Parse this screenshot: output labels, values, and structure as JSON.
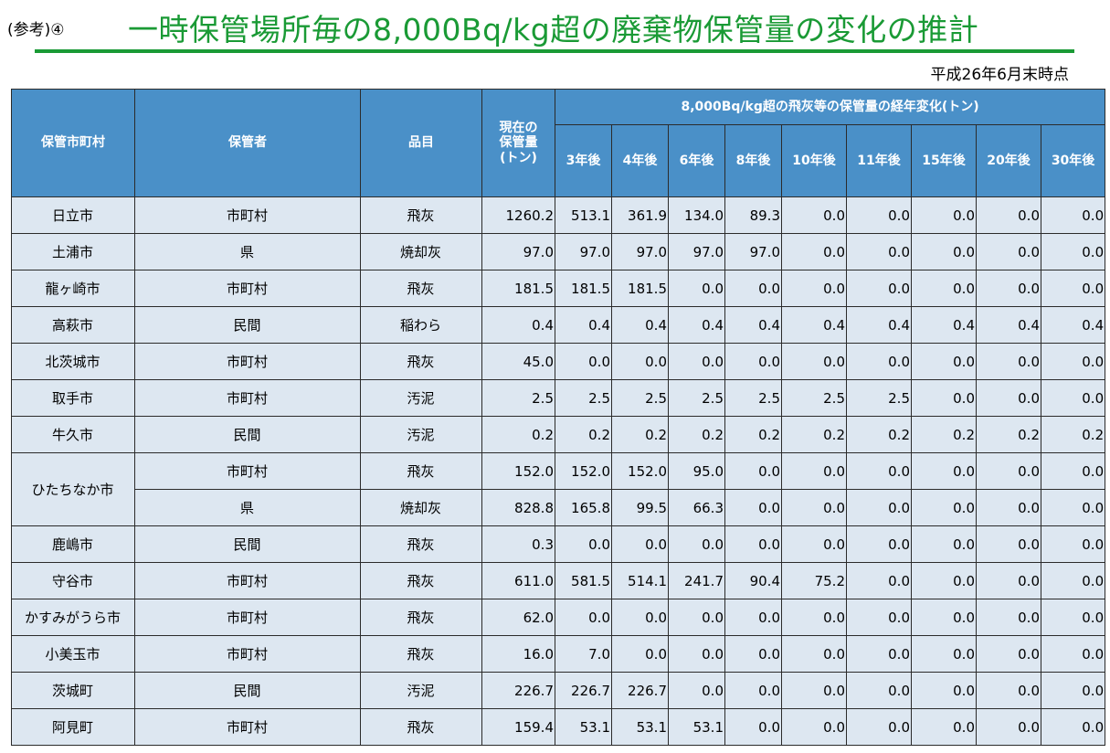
{
  "header": {
    "ref_label": "(参考)④",
    "title": "一時保管場所毎の8,000Bq/kg超の廃棄物保管量の変化の推計",
    "date_note": "平成26年6月末時点",
    "title_color": "#1a9a35"
  },
  "table": {
    "header_color": "#4a90c8",
    "cell_color": "#dde7f1",
    "columns": {
      "municipality": "保管市町村",
      "custodian": "保管者",
      "item": "品目",
      "current": "現在の\n保管量\n(トン)",
      "change_group": "8,000Bq/kg超の飛灰等の保管量の経年変化(トン)"
    },
    "years": [
      "3年後",
      "4年後",
      "6年後",
      "8年後",
      "10年後",
      "11年後",
      "15年後",
      "20年後",
      "30年後"
    ],
    "rows": [
      {
        "municipality": "日立市",
        "custodian": "市町村",
        "item": "飛灰",
        "current": "1260.2",
        "values": [
          "513.1",
          "361.9",
          "134.0",
          "89.3",
          "0.0",
          "0.0",
          "0.0",
          "0.0",
          "0.0"
        ]
      },
      {
        "municipality": "土浦市",
        "custodian": "県",
        "item": "焼却灰",
        "current": "97.0",
        "values": [
          "97.0",
          "97.0",
          "97.0",
          "97.0",
          "0.0",
          "0.0",
          "0.0",
          "0.0",
          "0.0"
        ]
      },
      {
        "municipality": "龍ヶ崎市",
        "custodian": "市町村",
        "item": "飛灰",
        "current": "181.5",
        "values": [
          "181.5",
          "181.5",
          "0.0",
          "0.0",
          "0.0",
          "0.0",
          "0.0",
          "0.0",
          "0.0"
        ]
      },
      {
        "municipality": "高萩市",
        "custodian": "民間",
        "item": "稲わら",
        "current": "0.4",
        "values": [
          "0.4",
          "0.4",
          "0.4",
          "0.4",
          "0.4",
          "0.4",
          "0.4",
          "0.4",
          "0.4"
        ]
      },
      {
        "municipality": "北茨城市",
        "custodian": "市町村",
        "item": "飛灰",
        "current": "45.0",
        "values": [
          "0.0",
          "0.0",
          "0.0",
          "0.0",
          "0.0",
          "0.0",
          "0.0",
          "0.0",
          "0.0"
        ]
      },
      {
        "municipality": "取手市",
        "custodian": "市町村",
        "item": "汚泥",
        "current": "2.5",
        "values": [
          "2.5",
          "2.5",
          "2.5",
          "2.5",
          "2.5",
          "2.5",
          "0.0",
          "0.0",
          "0.0"
        ]
      },
      {
        "municipality": "牛久市",
        "custodian": "民間",
        "item": "汚泥",
        "current": "0.2",
        "values": [
          "0.2",
          "0.2",
          "0.2",
          "0.2",
          "0.2",
          "0.2",
          "0.2",
          "0.2",
          "0.2"
        ]
      },
      {
        "municipality": "ひたちなか市",
        "custodian": "市町村",
        "item": "飛灰",
        "current": "152.0",
        "values": [
          "152.0",
          "152.0",
          "95.0",
          "0.0",
          "0.0",
          "0.0",
          "0.0",
          "0.0",
          "0.0"
        ]
      },
      {
        "municipality": "",
        "custodian": "県",
        "item": "焼却灰",
        "current": "828.8",
        "values": [
          "165.8",
          "99.5",
          "66.3",
          "0.0",
          "0.0",
          "0.0",
          "0.0",
          "0.0",
          "0.0"
        ]
      },
      {
        "municipality": "鹿嶋市",
        "custodian": "民間",
        "item": "飛灰",
        "current": "0.3",
        "values": [
          "0.0",
          "0.0",
          "0.0",
          "0.0",
          "0.0",
          "0.0",
          "0.0",
          "0.0",
          "0.0"
        ]
      },
      {
        "municipality": "守谷市",
        "custodian": "市町村",
        "item": "飛灰",
        "current": "611.0",
        "values": [
          "581.5",
          "514.1",
          "241.7",
          "90.4",
          "75.2",
          "0.0",
          "0.0",
          "0.0",
          "0.0"
        ]
      },
      {
        "municipality": "かすみがうら市",
        "custodian": "市町村",
        "item": "飛灰",
        "current": "62.0",
        "values": [
          "0.0",
          "0.0",
          "0.0",
          "0.0",
          "0.0",
          "0.0",
          "0.0",
          "0.0",
          "0.0"
        ]
      },
      {
        "municipality": "小美玉市",
        "custodian": "市町村",
        "item": "飛灰",
        "current": "16.0",
        "values": [
          "7.0",
          "0.0",
          "0.0",
          "0.0",
          "0.0",
          "0.0",
          "0.0",
          "0.0",
          "0.0"
        ]
      },
      {
        "municipality": "茨城町",
        "custodian": "民間",
        "item": "汚泥",
        "current": "226.7",
        "values": [
          "226.7",
          "226.7",
          "0.0",
          "0.0",
          "0.0",
          "0.0",
          "0.0",
          "0.0",
          "0.0"
        ]
      },
      {
        "municipality": "阿見町",
        "custodian": "市町村",
        "item": "飛灰",
        "current": "159.4",
        "values": [
          "53.1",
          "53.1",
          "53.1",
          "0.0",
          "0.0",
          "0.0",
          "0.0",
          "0.0",
          "0.0"
        ]
      }
    ]
  }
}
